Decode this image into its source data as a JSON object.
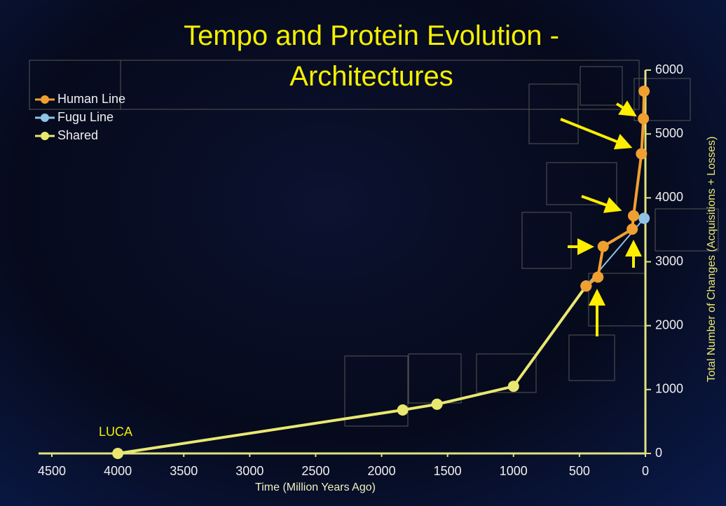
{
  "chart_data": {
    "type": "line",
    "title": "Tempo and Protein Evolution - Architectures",
    "x_label": "Time (Million Years Ago)",
    "y_label": "Total Number of Changes (Acquisitions + Losses)",
    "annotation": "LUCA",
    "xlim": [
      4500,
      0
    ],
    "xticks": [
      4500,
      4000,
      3500,
      3000,
      2500,
      2000,
      1500,
      1000,
      500,
      0
    ],
    "ylim": [
      0,
      6000
    ],
    "yticks": [
      0,
      1000,
      2000,
      3000,
      4000,
      5000,
      6000
    ],
    "legend": "top-left",
    "series": [
      {
        "name": "Human Line",
        "color": "#f0a030",
        "x": [
          450,
          360,
          320,
          100,
          90,
          30,
          15,
          10
        ],
        "values": [
          2620,
          2760,
          3240,
          3510,
          3720,
          4690,
          5240,
          5670
        ]
      },
      {
        "name": "Fugu Line",
        "color": "#8ec3e6",
        "x": [
          450,
          10
        ],
        "values": [
          2620,
          3680
        ]
      },
      {
        "name": "Shared",
        "color": "#e8e870",
        "x": [
          4000,
          1840,
          1580,
          1000,
          450
        ],
        "values": [
          0,
          680,
          770,
          1050,
          2620
        ]
      }
    ]
  }
}
